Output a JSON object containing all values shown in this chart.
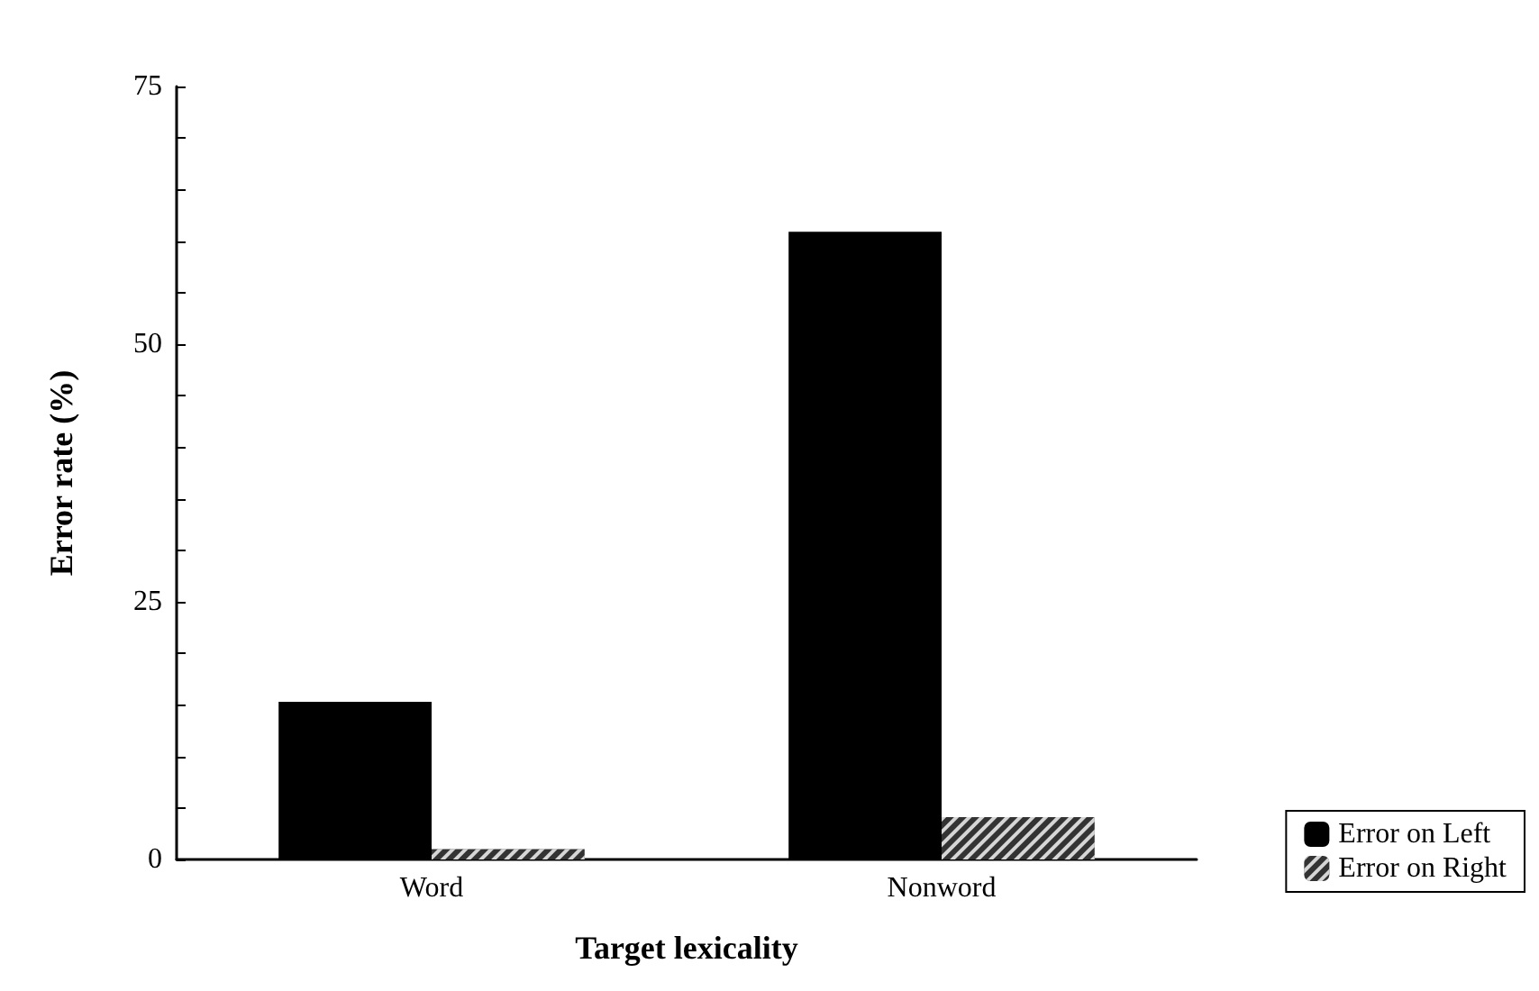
{
  "chart_data": {
    "type": "bar",
    "xlabel": "Target lexicality",
    "ylabel": "Error rate (%)",
    "categories": [
      "Word",
      "Nonword"
    ],
    "series": [
      {
        "name": "Error on Left",
        "color": "#000000",
        "values": [
          15.3,
          60.9
        ]
      },
      {
        "name": "Error on Right",
        "color": "#333333",
        "values": [
          1,
          4.1
        ]
      }
    ],
    "ylim": [
      0,
      75
    ],
    "yticks": [
      0,
      {
        "value": 5,
        "label": null
      },
      {
        "value": 10,
        "label": null
      },
      {
        "value": 15,
        "label": null
      },
      {
        "value": 20,
        "label": null
      },
      25,
      {
        "value": 30,
        "label": null
      },
      {
        "value": 35,
        "label": null
      },
      {
        "value": 40,
        "label": null
      },
      {
        "value": 45,
        "label": null
      },
      50,
      {
        "value": 55,
        "label": null
      },
      {
        "value": 60,
        "label": null
      },
      {
        "value": 65,
        "label": null
      },
      {
        "value": 70,
        "label": null
      },
      75
    ],
    "grid": false,
    "legend": "bottom right"
  }
}
